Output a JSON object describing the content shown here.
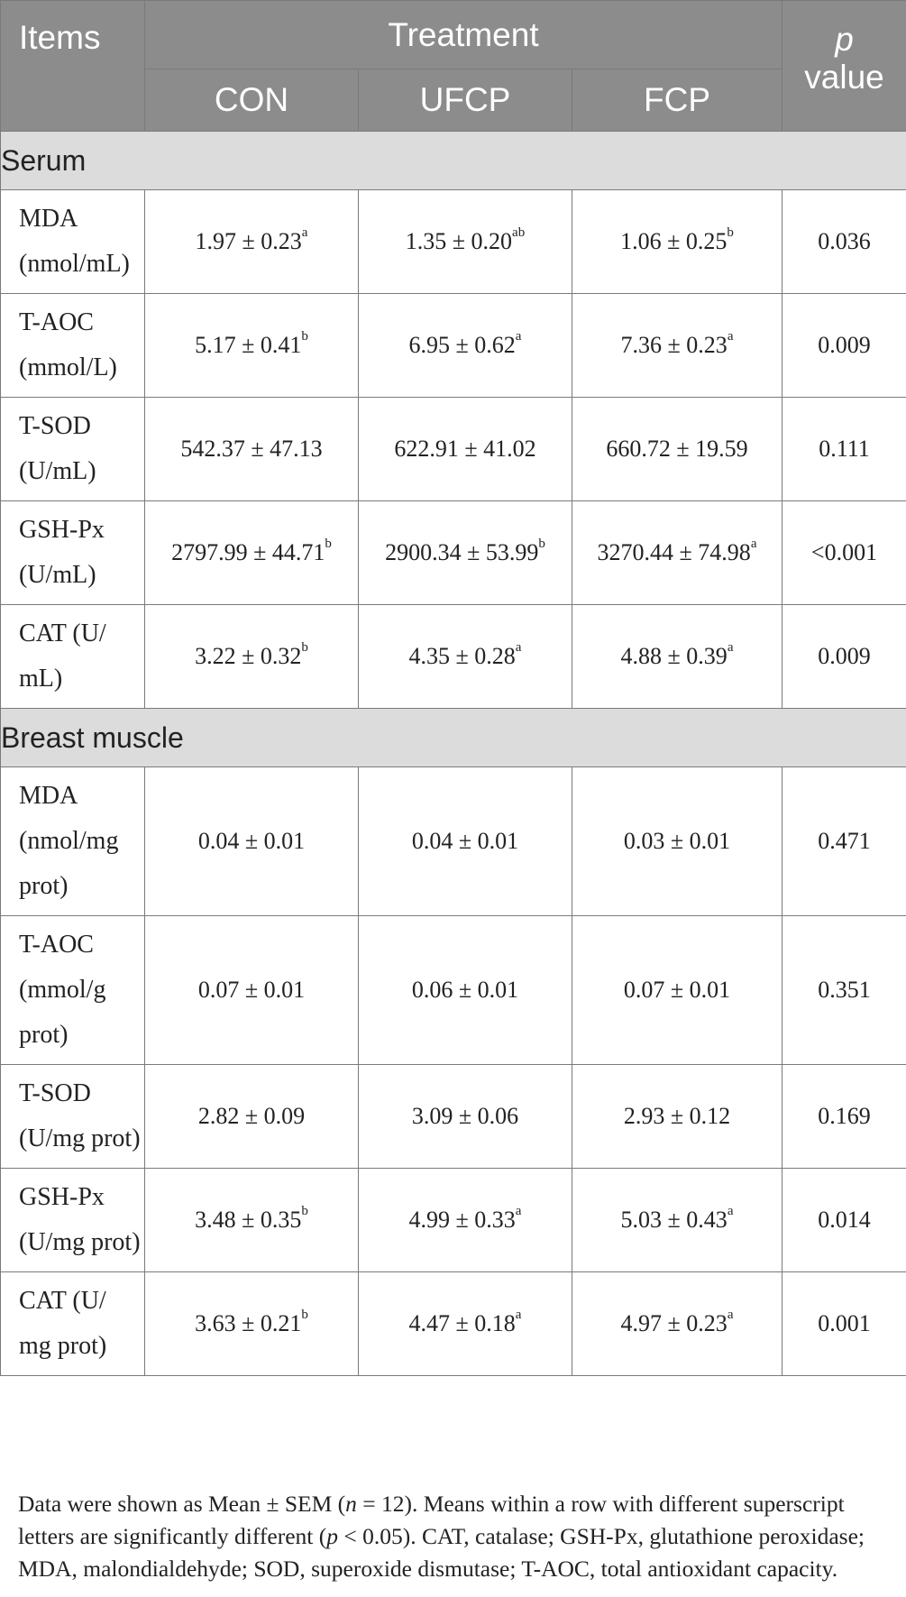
{
  "header": {
    "items": "Items",
    "treatment": "Treatment",
    "p_value_p": "p",
    "p_value_rest": "value",
    "groups": [
      "CON",
      "UFCP",
      "FCP"
    ]
  },
  "sections": [
    {
      "title": "Serum",
      "rows": [
        {
          "label": "MDA (nmol/mL)",
          "values": [
            {
              "v": "1.97 ± 0.23",
              "s": "a"
            },
            {
              "v": "1.35 ± 0.20",
              "s": "ab"
            },
            {
              "v": "1.06 ± 0.25",
              "s": "b"
            }
          ],
          "p": "0.036"
        },
        {
          "label": "T-AOC (mmol/L)",
          "values": [
            {
              "v": "5.17 ± 0.41",
              "s": "b"
            },
            {
              "v": "6.95 ± 0.62",
              "s": "a"
            },
            {
              "v": "7.36 ± 0.23",
              "s": "a"
            }
          ],
          "p": "0.009"
        },
        {
          "label": "T-SOD (U/mL)",
          "values": [
            {
              "v": "542.37 ± 47.13",
              "s": ""
            },
            {
              "v": "622.91 ± 41.02",
              "s": ""
            },
            {
              "v": "660.72 ± 19.59",
              "s": ""
            }
          ],
          "p": "0.111"
        },
        {
          "label": "GSH-Px (U/mL)",
          "values": [
            {
              "v": "2797.99 ± 44.71",
              "s": "b"
            },
            {
              "v": "2900.34 ± 53.99",
              "s": "b"
            },
            {
              "v": "3270.44 ± 74.98",
              "s": "a"
            }
          ],
          "p": "<0.001"
        },
        {
          "label": "CAT (U/ mL)",
          "values": [
            {
              "v": "3.22 ± 0.32",
              "s": "b"
            },
            {
              "v": "4.35 ± 0.28",
              "s": "a"
            },
            {
              "v": "4.88 ± 0.39",
              "s": "a"
            }
          ],
          "p": "0.009"
        }
      ]
    },
    {
      "title": "Breast muscle",
      "rows": [
        {
          "label": "MDA (nmol/mg prot)",
          "values": [
            {
              "v": "0.04 ± 0.01",
              "s": ""
            },
            {
              "v": "0.04 ± 0.01",
              "s": ""
            },
            {
              "v": "0.03 ± 0.01",
              "s": ""
            }
          ],
          "p": "0.471"
        },
        {
          "label": "T-AOC (mmol/g prot)",
          "values": [
            {
              "v": "0.07 ± 0.01",
              "s": ""
            },
            {
              "v": "0.06 ± 0.01",
              "s": ""
            },
            {
              "v": "0.07 ± 0.01",
              "s": ""
            }
          ],
          "p": "0.351"
        },
        {
          "label": "T-SOD (U/mg prot)",
          "values": [
            {
              "v": "2.82 ± 0.09",
              "s": ""
            },
            {
              "v": "3.09 ± 0.06",
              "s": ""
            },
            {
              "v": "2.93 ± 0.12",
              "s": ""
            }
          ],
          "p": "0.169"
        },
        {
          "label": "GSH-Px (U/mg prot)",
          "values": [
            {
              "v": "3.48 ± 0.35",
              "s": "b"
            },
            {
              "v": "4.99 ± 0.33",
              "s": "a"
            },
            {
              "v": "5.03 ± 0.43",
              "s": "a"
            }
          ],
          "p": "0.014"
        },
        {
          "label": "CAT (U/ mg prot)",
          "values": [
            {
              "v": "3.63 ± 0.21",
              "s": "b"
            },
            {
              "v": "4.47 ± 0.18",
              "s": "a"
            },
            {
              "v": "4.97 ± 0.23",
              "s": "a"
            }
          ],
          "p": "0.001"
        }
      ]
    }
  ],
  "footnote": {
    "part1": "Data were shown as Mean ± SEM (",
    "n_italic": "n",
    "part2": " = 12). Means within a row with different superscript letters are significantly different (",
    "p_italic": "p",
    "part3": " < 0.05). CAT, catalase; GSH-Px, glutathione peroxidase; MDA, malondialdehyde; SOD, superoxide dismutase; T-AOC, total antioxidant capacity."
  },
  "colors": {
    "header_bg": "#8c8c8c",
    "section_bg": "#dcdcdc",
    "border": "#7a7a7a",
    "text": "#222222"
  }
}
